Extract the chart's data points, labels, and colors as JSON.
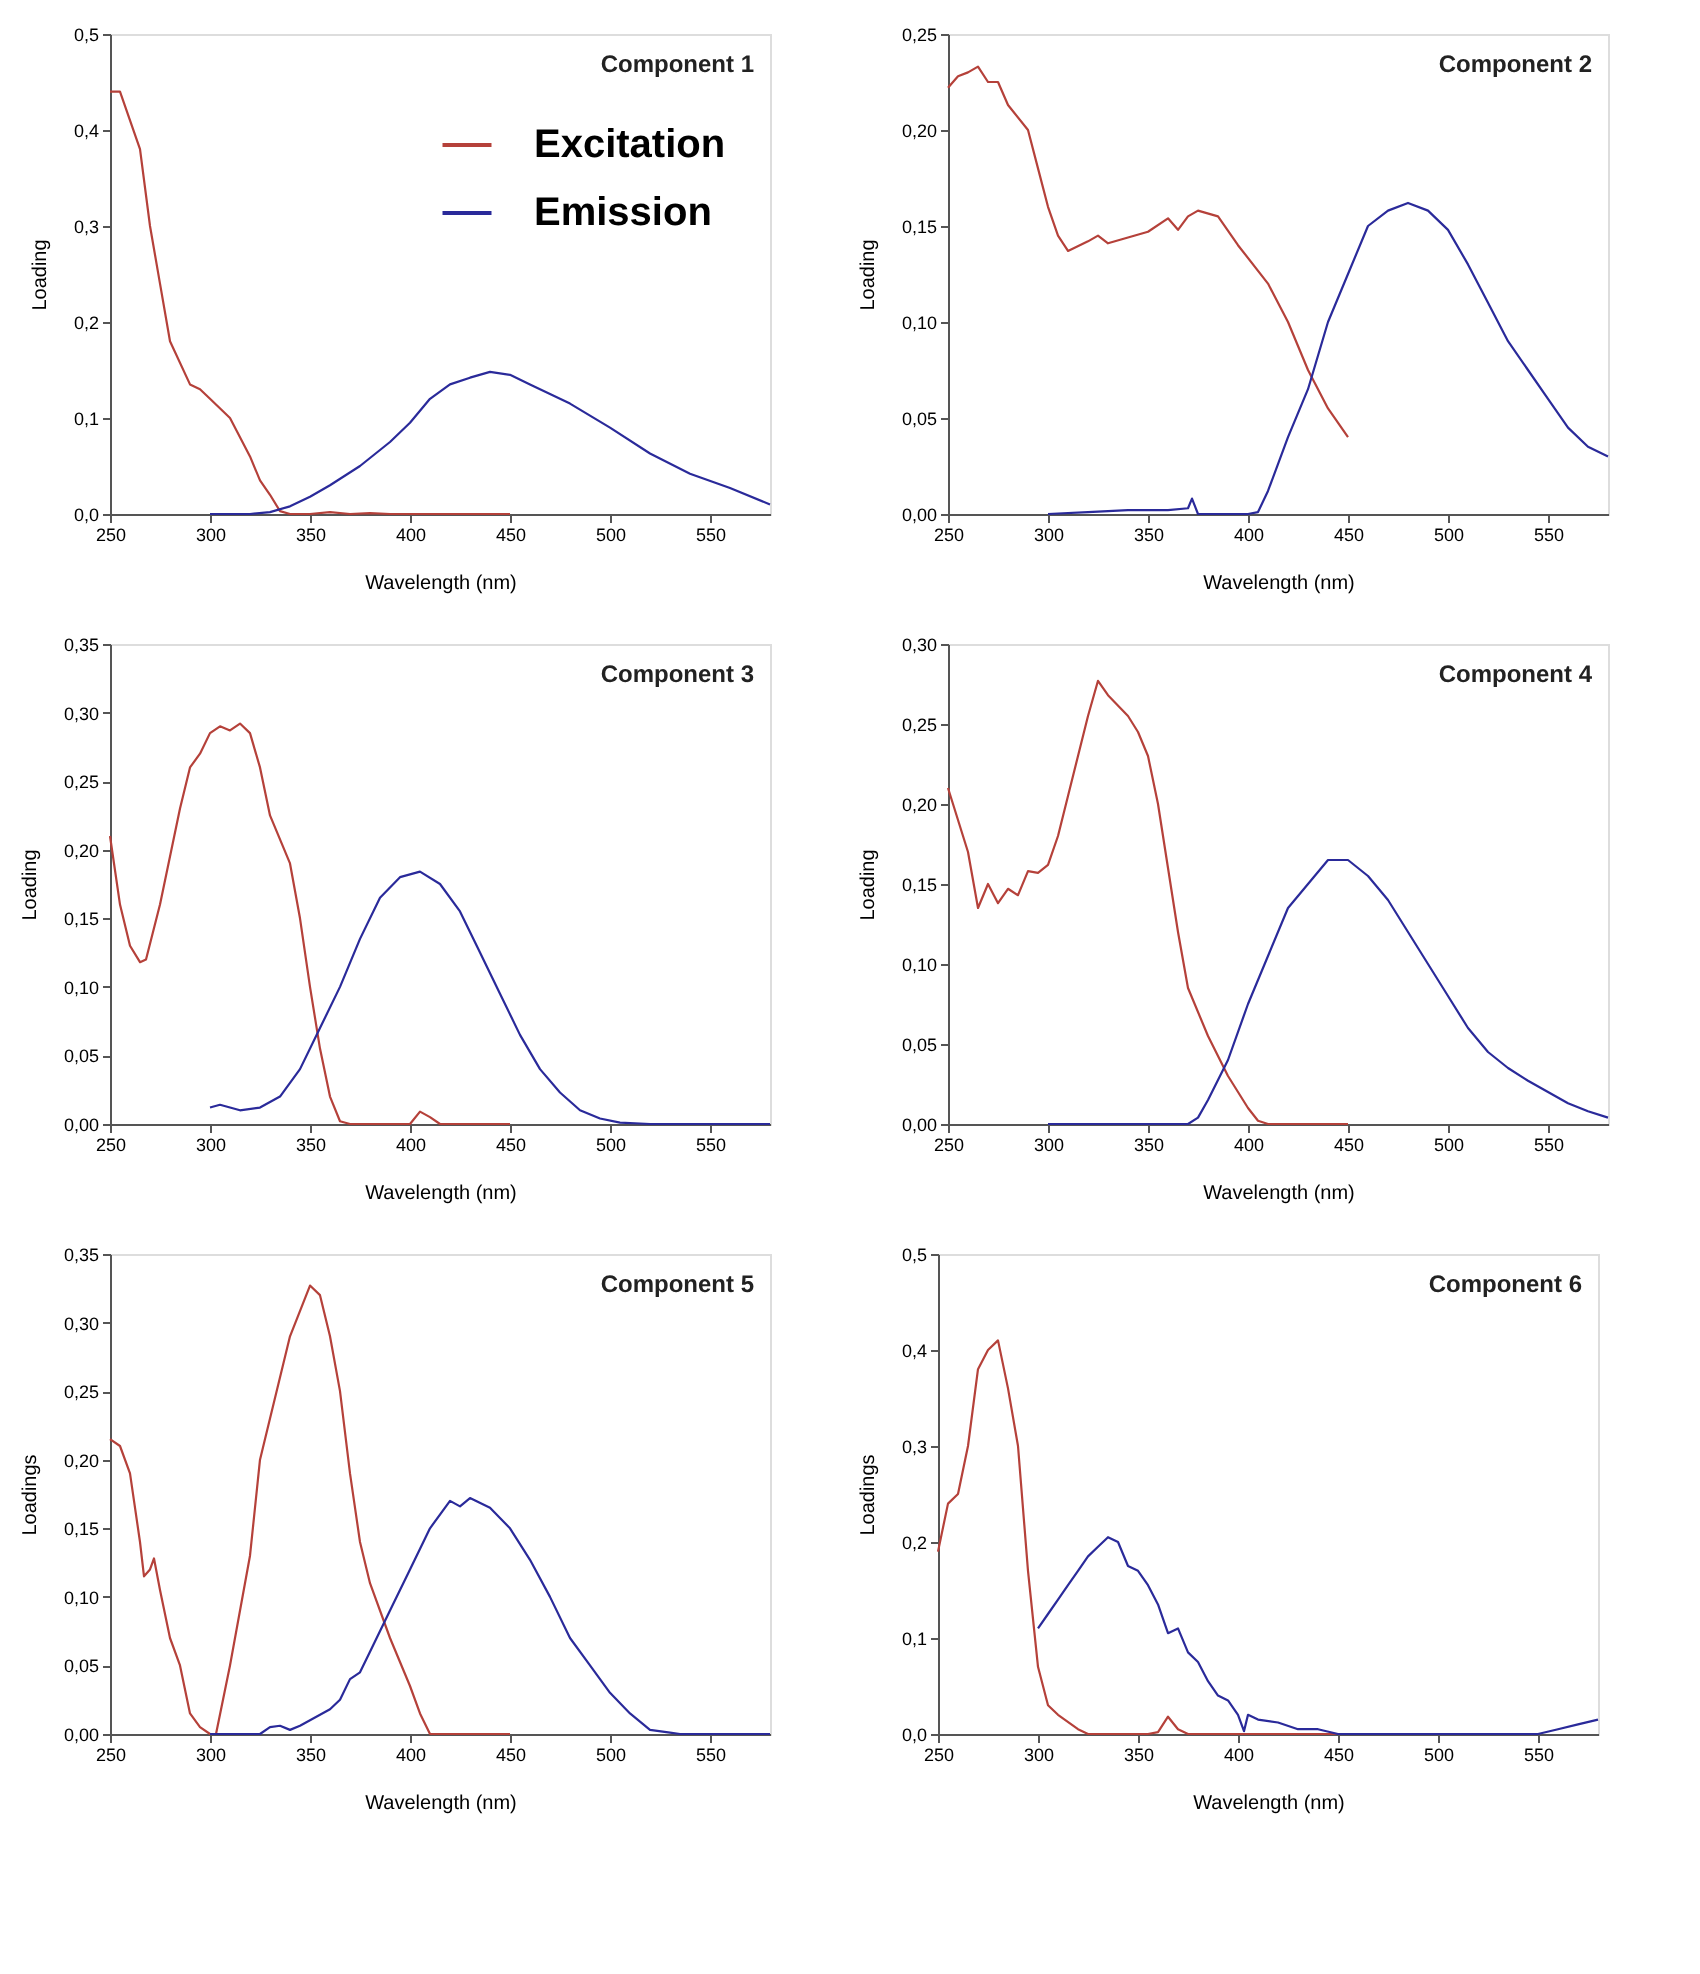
{
  "chart_data": [
    {
      "type": "line",
      "title": "Component 1",
      "xlabel": "Wavelength (nm)",
      "ylabel": "Loading",
      "legend": "top right",
      "grid": false,
      "xlim": [
        250,
        580
      ],
      "xticks": [
        250,
        300,
        350,
        400,
        450,
        500,
        550
      ],
      "ylim": [
        0,
        0.5
      ],
      "yticks": [
        {
          "value": 0,
          "label": "0,0"
        },
        {
          "value": 0.1,
          "label": "0,1"
        },
        {
          "value": 0.2,
          "label": "0,2"
        },
        {
          "value": 0.3,
          "label": "0,3"
        },
        {
          "value": 0.4,
          "label": "0,4"
        },
        {
          "value": 0.5,
          "label": "0,5"
        }
      ],
      "series": [
        {
          "name": "Excitation",
          "color": "#b5413a",
          "x": [
            250,
            255,
            265,
            270,
            275,
            280,
            290,
            295,
            300,
            310,
            320,
            325,
            330,
            335,
            340,
            350,
            360,
            370,
            380,
            390,
            450
          ],
          "values": [
            0.44,
            0.44,
            0.38,
            0.3,
            0.24,
            0.18,
            0.135,
            0.13,
            0.12,
            0.1,
            0.06,
            0.035,
            0.02,
            0.003,
            0,
            0,
            0.002,
            0,
            0.001,
            0,
            0
          ]
        },
        {
          "name": "Emission",
          "color": "#2a2a9a",
          "x": [
            300,
            320,
            330,
            340,
            350,
            360,
            375,
            390,
            400,
            410,
            420,
            430,
            440,
            450,
            460,
            480,
            500,
            520,
            540,
            560,
            580
          ],
          "values": [
            0,
            0,
            0.002,
            0.008,
            0.018,
            0.03,
            0.05,
            0.075,
            0.095,
            0.12,
            0.135,
            0.142,
            0.148,
            0.145,
            0.135,
            0.115,
            0.09,
            0.063,
            0.042,
            0.027,
            0.01
          ]
        }
      ]
    },
    {
      "type": "line",
      "title": "Component 2",
      "xlabel": "Wavelength (nm)",
      "ylabel": "Loading",
      "grid": false,
      "xlim": [
        250,
        580
      ],
      "xticks": [
        250,
        300,
        350,
        400,
        450,
        500,
        550
      ],
      "ylim": [
        0,
        0.25
      ],
      "yticks": [
        {
          "value": 0,
          "label": "0,00"
        },
        {
          "value": 0.05,
          "label": "0,05"
        },
        {
          "value": 0.1,
          "label": "0,10"
        },
        {
          "value": 0.15,
          "label": "0,15"
        },
        {
          "value": 0.2,
          "label": "0,20"
        },
        {
          "value": 0.25,
          "label": "0,25"
        }
      ],
      "series": [
        {
          "color": "#b5413a",
          "x": [
            250,
            255,
            260,
            265,
            270,
            275,
            280,
            290,
            295,
            300,
            305,
            310,
            320,
            325,
            330,
            340,
            350,
            360,
            365,
            370,
            375,
            385,
            395,
            410,
            420,
            430,
            440,
            450
          ],
          "values": [
            0.222,
            0.228,
            0.23,
            0.233,
            0.225,
            0.225,
            0.213,
            0.2,
            0.18,
            0.16,
            0.145,
            0.137,
            0.142,
            0.145,
            0.141,
            0.144,
            0.147,
            0.154,
            0.148,
            0.155,
            0.158,
            0.155,
            0.14,
            0.12,
            0.1,
            0.075,
            0.055,
            0.04
          ]
        },
        {
          "color": "#2a2a9a",
          "x": [
            300,
            320,
            340,
            360,
            370,
            372,
            375,
            400,
            405,
            410,
            420,
            430,
            440,
            450,
            460,
            470,
            480,
            490,
            500,
            510,
            520,
            530,
            540,
            550,
            560,
            570,
            580
          ],
          "values": [
            0,
            0.001,
            0.002,
            0.002,
            0.003,
            0.008,
            0,
            0,
            0.001,
            0.012,
            0.04,
            0.065,
            0.1,
            0.125,
            0.15,
            0.158,
            0.162,
            0.158,
            0.148,
            0.13,
            0.11,
            0.09,
            0.075,
            0.06,
            0.045,
            0.035,
            0.03
          ]
        }
      ]
    },
    {
      "type": "line",
      "title": "Component 3",
      "xlabel": "Wavelength (nm)",
      "ylabel": "Loading",
      "grid": false,
      "xlim": [
        250,
        580
      ],
      "xticks": [
        250,
        300,
        350,
        400,
        450,
        500,
        550
      ],
      "ylim": [
        0,
        0.35
      ],
      "yticks": [
        {
          "value": 0,
          "label": "0,00"
        },
        {
          "value": 0.05,
          "label": "0,05"
        },
        {
          "value": 0.1,
          "label": "0,10"
        },
        {
          "value": 0.15,
          "label": "0,15"
        },
        {
          "value": 0.2,
          "label": "0,20"
        },
        {
          "value": 0.25,
          "label": "0,25"
        },
        {
          "value": 0.3,
          "label": "0,30"
        },
        {
          "value": 0.35,
          "label": "0,35"
        }
      ],
      "series": [
        {
          "color": "#b5413a",
          "x": [
            250,
            255,
            260,
            265,
            268,
            275,
            285,
            290,
            295,
            300,
            305,
            310,
            315,
            320,
            325,
            330,
            340,
            345,
            350,
            355,
            360,
            365,
            370,
            400,
            405,
            410,
            415,
            450
          ],
          "values": [
            0.21,
            0.16,
            0.13,
            0.118,
            0.12,
            0.16,
            0.23,
            0.26,
            0.27,
            0.285,
            0.29,
            0.287,
            0.292,
            0.285,
            0.26,
            0.225,
            0.19,
            0.15,
            0.1,
            0.055,
            0.02,
            0.002,
            0,
            0,
            0.009,
            0.005,
            0,
            0
          ]
        },
        {
          "color": "#2a2a9a",
          "x": [
            300,
            305,
            315,
            325,
            335,
            345,
            355,
            365,
            375,
            385,
            395,
            405,
            415,
            425,
            435,
            445,
            455,
            465,
            475,
            485,
            495,
            505,
            520,
            580
          ],
          "values": [
            0.012,
            0.014,
            0.01,
            0.012,
            0.02,
            0.04,
            0.07,
            0.1,
            0.135,
            0.165,
            0.18,
            0.184,
            0.175,
            0.155,
            0.125,
            0.095,
            0.065,
            0.04,
            0.023,
            0.01,
            0.004,
            0.001,
            0,
            0
          ]
        }
      ]
    },
    {
      "type": "line",
      "title": "Component 4",
      "xlabel": "Wavelength (nm)",
      "ylabel": "Loading",
      "grid": false,
      "xlim": [
        250,
        580
      ],
      "xticks": [
        250,
        300,
        350,
        400,
        450,
        500,
        550
      ],
      "ylim": [
        0,
        0.3
      ],
      "yticks": [
        {
          "value": 0,
          "label": "0,00"
        },
        {
          "value": 0.05,
          "label": "0,05"
        },
        {
          "value": 0.1,
          "label": "0,10"
        },
        {
          "value": 0.15,
          "label": "0,15"
        },
        {
          "value": 0.2,
          "label": "0,20"
        },
        {
          "value": 0.25,
          "label": "0,25"
        },
        {
          "value": 0.3,
          "label": "0,30"
        }
      ],
      "series": [
        {
          "color": "#b5413a",
          "x": [
            250,
            255,
            260,
            265,
            270,
            275,
            280,
            285,
            290,
            295,
            300,
            305,
            310,
            315,
            320,
            325,
            330,
            340,
            345,
            350,
            355,
            360,
            365,
            370,
            380,
            390,
            400,
            405,
            410,
            450
          ],
          "values": [
            0.21,
            0.19,
            0.17,
            0.135,
            0.15,
            0.138,
            0.147,
            0.143,
            0.158,
            0.157,
            0.162,
            0.18,
            0.205,
            0.23,
            0.255,
            0.277,
            0.268,
            0.255,
            0.245,
            0.23,
            0.2,
            0.16,
            0.12,
            0.085,
            0.055,
            0.03,
            0.01,
            0.002,
            0,
            0
          ]
        },
        {
          "color": "#2a2a9a",
          "x": [
            300,
            370,
            375,
            380,
            390,
            400,
            410,
            420,
            430,
            440,
            450,
            460,
            470,
            480,
            490,
            500,
            510,
            520,
            530,
            540,
            550,
            560,
            570,
            580
          ],
          "values": [
            0,
            0,
            0.004,
            0.015,
            0.04,
            0.075,
            0.105,
            0.135,
            0.15,
            0.165,
            0.165,
            0.155,
            0.14,
            0.12,
            0.1,
            0.08,
            0.06,
            0.045,
            0.035,
            0.027,
            0.02,
            0.013,
            0.008,
            0.004
          ]
        }
      ]
    },
    {
      "type": "line",
      "title": "Component 5",
      "xlabel": "Wavelength (nm)",
      "ylabel": "Loadings",
      "grid": false,
      "xlim": [
        250,
        580
      ],
      "xticks": [
        250,
        300,
        350,
        400,
        450,
        500,
        550
      ],
      "ylim": [
        0,
        0.35
      ],
      "yticks": [
        {
          "value": 0,
          "label": "0,00"
        },
        {
          "value": 0.05,
          "label": "0,05"
        },
        {
          "value": 0.1,
          "label": "0,10"
        },
        {
          "value": 0.15,
          "label": "0,15"
        },
        {
          "value": 0.2,
          "label": "0,20"
        },
        {
          "value": 0.25,
          "label": "0,25"
        },
        {
          "value": 0.3,
          "label": "0,30"
        },
        {
          "value": 0.35,
          "label": "0,35"
        }
      ],
      "series": [
        {
          "color": "#b5413a",
          "x": [
            250,
            255,
            260,
            265,
            267,
            270,
            272,
            275,
            280,
            285,
            290,
            295,
            300,
            303,
            310,
            320,
            325,
            330,
            340,
            350,
            355,
            360,
            365,
            370,
            375,
            380,
            390,
            400,
            405,
            410,
            450
          ],
          "values": [
            0.215,
            0.21,
            0.19,
            0.14,
            0.115,
            0.12,
            0.128,
            0.105,
            0.07,
            0.05,
            0.015,
            0.005,
            0,
            0,
            0.05,
            0.13,
            0.2,
            0.23,
            0.29,
            0.327,
            0.32,
            0.29,
            0.25,
            0.19,
            0.14,
            0.11,
            0.07,
            0.035,
            0.015,
            0,
            0
          ]
        },
        {
          "color": "#2a2a9a",
          "x": [
            300,
            325,
            330,
            335,
            340,
            345,
            350,
            360,
            365,
            370,
            375,
            380,
            390,
            400,
            410,
            420,
            425,
            430,
            440,
            450,
            460,
            470,
            480,
            490,
            500,
            510,
            520,
            530,
            535,
            580
          ],
          "values": [
            0,
            0,
            0.005,
            0.006,
            0.003,
            0.006,
            0.01,
            0.018,
            0.025,
            0.04,
            0.045,
            0.06,
            0.09,
            0.12,
            0.15,
            0.17,
            0.166,
            0.172,
            0.165,
            0.15,
            0.127,
            0.1,
            0.07,
            0.05,
            0.03,
            0.015,
            0.003,
            0.001,
            0,
            0
          ]
        }
      ]
    },
    {
      "type": "line",
      "title": "Component 6",
      "xlabel": "Wavelength (nm)",
      "ylabel": "Loadings",
      "grid": false,
      "xlim": [
        250,
        580
      ],
      "xticks": [
        250,
        300,
        350,
        400,
        450,
        500,
        550
      ],
      "ylim": [
        0,
        0.5
      ],
      "yticks": [
        {
          "value": 0,
          "label": "0,0"
        },
        {
          "value": 0.1,
          "label": "0,1"
        },
        {
          "value": 0.2,
          "label": "0,2"
        },
        {
          "value": 0.3,
          "label": "0,3"
        },
        {
          "value": 0.4,
          "label": "0,4"
        },
        {
          "value": 0.5,
          "label": "0,5"
        }
      ],
      "series": [
        {
          "color": "#b5413a",
          "x": [
            250,
            255,
            260,
            265,
            270,
            275,
            280,
            285,
            290,
            295,
            300,
            305,
            310,
            320,
            325,
            355,
            360,
            365,
            370,
            375,
            450
          ],
          "values": [
            0.19,
            0.24,
            0.25,
            0.3,
            0.38,
            0.4,
            0.41,
            0.36,
            0.3,
            0.17,
            0.07,
            0.03,
            0.02,
            0.005,
            0,
            0,
            0.002,
            0.018,
            0.005,
            0,
            0
          ]
        },
        {
          "color": "#2a2a9a",
          "x": [
            300,
            305,
            310,
            315,
            320,
            325,
            330,
            335,
            340,
            345,
            350,
            355,
            360,
            365,
            370,
            375,
            380,
            385,
            390,
            395,
            400,
            403,
            405,
            410,
            420,
            430,
            440,
            450,
            550,
            560,
            570,
            580
          ],
          "values": [
            0.11,
            0.125,
            0.14,
            0.155,
            0.17,
            0.185,
            0.195,
            0.205,
            0.2,
            0.175,
            0.17,
            0.155,
            0.135,
            0.105,
            0.11,
            0.085,
            0.075,
            0.055,
            0.04,
            0.035,
            0.02,
            0.003,
            0.02,
            0.015,
            0.012,
            0.005,
            0.005,
            0,
            0,
            0.005,
            0.01,
            0.015
          ]
        }
      ]
    }
  ]
}
